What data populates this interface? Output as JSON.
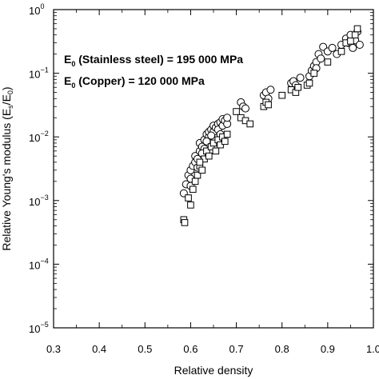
{
  "chart_data": {
    "type": "scatter",
    "xlabel": "Relative density",
    "ylabel_main": "Relative Young's modulus (E",
    "ylabel_sub": "s",
    "ylabel_mid": "/E",
    "ylabel_sub2": "0",
    "ylabel_end": ")",
    "xlim": [
      0.3,
      1.0
    ],
    "ylim": [
      1e-05,
      1
    ],
    "yscale": "log",
    "grid": false,
    "xticks": [
      0.3,
      0.4,
      0.5,
      0.6,
      0.7,
      0.8,
      0.9,
      1.0
    ],
    "xtick_labels": [
      "0.3",
      "0.4",
      "0.5",
      "0.6",
      "0.7",
      "0.8",
      "0.9",
      "1.0"
    ],
    "yticks": [
      {
        "value": 1,
        "base": "10",
        "exp": "0"
      },
      {
        "value": 0.1,
        "base": "10",
        "exp": "−1"
      },
      {
        "value": 0.01,
        "base": "10",
        "exp": "−2"
      },
      {
        "value": 0.001,
        "base": "10",
        "exp": "−3"
      },
      {
        "value": 0.0001,
        "base": "10",
        "exp": "−4"
      },
      {
        "value": 1e-05,
        "base": "10",
        "exp": "−5"
      }
    ],
    "annotations": [
      {
        "prefix": "E",
        "sub": "0",
        "text": " (Stainless steel) = 195 000 MPa"
      },
      {
        "prefix": "E",
        "sub": "0",
        "text": " (Copper) = 120 000 MPa"
      }
    ],
    "series": [
      {
        "marker": "circle",
        "points": [
          [
            0.585,
            0.0013
          ],
          [
            0.59,
            0.0018
          ],
          [
            0.595,
            0.0025
          ],
          [
            0.6,
            0.0022
          ],
          [
            0.6,
            0.003
          ],
          [
            0.605,
            0.0035
          ],
          [
            0.61,
            0.004
          ],
          [
            0.61,
            0.005
          ],
          [
            0.615,
            0.0045
          ],
          [
            0.62,
            0.006
          ],
          [
            0.62,
            0.008
          ],
          [
            0.625,
            0.007
          ],
          [
            0.63,
            0.009
          ],
          [
            0.63,
            0.0065
          ],
          [
            0.635,
            0.011
          ],
          [
            0.64,
            0.01
          ],
          [
            0.64,
            0.012
          ],
          [
            0.645,
            0.013
          ],
          [
            0.65,
            0.012
          ],
          [
            0.65,
            0.015
          ],
          [
            0.655,
            0.014
          ],
          [
            0.66,
            0.016
          ],
          [
            0.66,
            0.013
          ],
          [
            0.665,
            0.017
          ],
          [
            0.67,
            0.015
          ],
          [
            0.67,
            0.019
          ],
          [
            0.675,
            0.018
          ],
          [
            0.68,
            0.016
          ],
          [
            0.68,
            0.02
          ],
          [
            0.665,
            0.011
          ],
          [
            0.6,
            0.0017
          ],
          [
            0.615,
            0.0033
          ],
          [
            0.625,
            0.0055
          ],
          [
            0.635,
            0.0085
          ],
          [
            0.645,
            0.0105
          ],
          [
            0.71,
            0.035
          ],
          [
            0.715,
            0.03
          ],
          [
            0.72,
            0.028
          ],
          [
            0.76,
            0.045
          ],
          [
            0.765,
            0.05
          ],
          [
            0.77,
            0.04
          ],
          [
            0.775,
            0.055
          ],
          [
            0.82,
            0.07
          ],
          [
            0.825,
            0.075
          ],
          [
            0.83,
            0.065
          ],
          [
            0.84,
            0.085
          ],
          [
            0.86,
            0.09
          ],
          [
            0.865,
            0.11
          ],
          [
            0.87,
            0.13
          ],
          [
            0.875,
            0.15
          ],
          [
            0.88,
            0.2
          ],
          [
            0.885,
            0.17
          ],
          [
            0.89,
            0.26
          ],
          [
            0.9,
            0.22
          ],
          [
            0.91,
            0.25
          ],
          [
            0.92,
            0.2
          ],
          [
            0.93,
            0.28
          ],
          [
            0.94,
            0.35
          ],
          [
            0.945,
            0.3
          ],
          [
            0.95,
            0.4
          ],
          [
            0.955,
            0.25
          ],
          [
            0.96,
            0.33
          ],
          [
            0.965,
            0.45
          ],
          [
            0.97,
            0.28
          ],
          [
            0.875,
            0.12
          ]
        ]
      },
      {
        "marker": "square",
        "points": [
          [
            0.585,
            0.0005
          ],
          [
            0.587,
            0.00045
          ],
          [
            0.595,
            0.0011
          ],
          [
            0.6,
            0.00085
          ],
          [
            0.605,
            0.0015
          ],
          [
            0.61,
            0.002
          ],
          [
            0.615,
            0.0025
          ],
          [
            0.62,
            0.0035
          ],
          [
            0.625,
            0.003
          ],
          [
            0.63,
            0.0045
          ],
          [
            0.635,
            0.006
          ],
          [
            0.64,
            0.005
          ],
          [
            0.645,
            0.007
          ],
          [
            0.65,
            0.008
          ],
          [
            0.655,
            0.006
          ],
          [
            0.66,
            0.009
          ],
          [
            0.665,
            0.0075
          ],
          [
            0.67,
            0.01
          ],
          [
            0.675,
            0.0085
          ],
          [
            0.68,
            0.011
          ],
          [
            0.7,
            0.025
          ],
          [
            0.71,
            0.02
          ],
          [
            0.72,
            0.018
          ],
          [
            0.73,
            0.016
          ],
          [
            0.76,
            0.03
          ],
          [
            0.765,
            0.035
          ],
          [
            0.77,
            0.032
          ],
          [
            0.8,
            0.045
          ],
          [
            0.82,
            0.055
          ],
          [
            0.83,
            0.05
          ],
          [
            0.835,
            0.06
          ],
          [
            0.855,
            0.065
          ],
          [
            0.86,
            0.07
          ],
          [
            0.87,
            0.1
          ],
          [
            0.9,
            0.15
          ],
          [
            0.93,
            0.22
          ],
          [
            0.94,
            0.3
          ],
          [
            0.95,
            0.32
          ],
          [
            0.96,
            0.4
          ],
          [
            0.965,
            0.5
          ],
          [
            0.62,
            0.004
          ]
        ]
      }
    ]
  }
}
